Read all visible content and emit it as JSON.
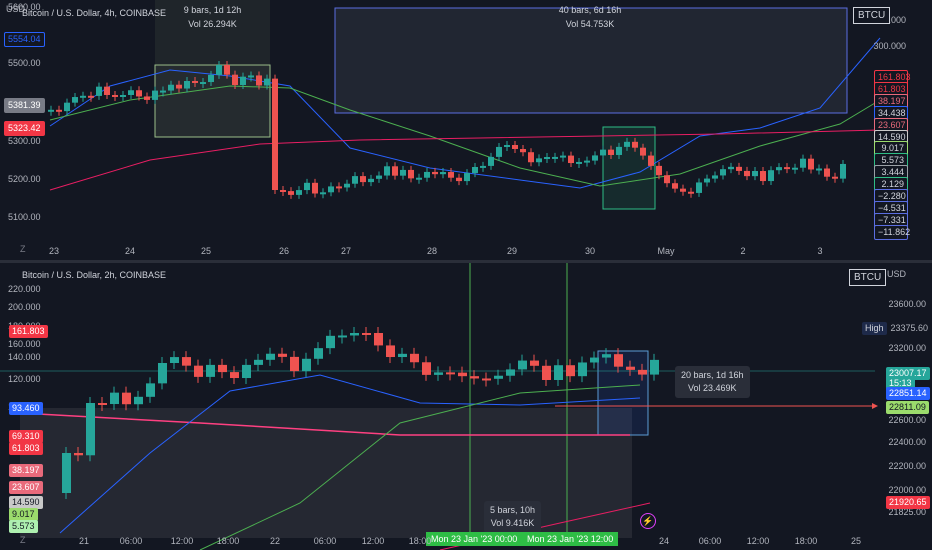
{
  "top_pane": {
    "title": "Bitcoin / U.S. Dollar, 4h, COINBASE",
    "currency": "USD",
    "symbol_button": "BTCU",
    "left_axis": [
      "5600.00",
      "5500.00",
      "5400.00",
      "5300.00",
      "5200.00",
      "5100.00"
    ],
    "left_badges": [
      {
        "text": "5554.04",
        "color": "#2962ff",
        "bg": "#131722"
      },
      {
        "text": "5381.39",
        "color": "#fff",
        "bg": "#787b86"
      },
      {
        "text": "5323.42",
        "color": "#fff",
        "bg": "#f23645"
      }
    ],
    "right_axis": [
      "400.000",
      "300.000"
    ],
    "right_badges": [
      {
        "text": "161.803",
        "bg": "#131722",
        "color": "#f23645",
        "border": "#f23645"
      },
      {
        "text": "61.803",
        "bg": "#131722",
        "color": "#f23645",
        "border": "#f23645"
      },
      {
        "text": "38.197",
        "bg": "#131722",
        "color": "#e96a7b",
        "border": "#e96a7b"
      },
      {
        "text": "34.438",
        "bg": "#131722",
        "color": "#d1d4dc",
        "border": "#2962ff"
      },
      {
        "text": "23.607",
        "bg": "#131722",
        "color": "#e96a7b",
        "border": "#e96a7b"
      },
      {
        "text": "14.590",
        "bg": "#131722",
        "color": "#d1d4dc",
        "border": "#c9c9c9"
      },
      {
        "text": "9.017",
        "bg": "#131722",
        "color": "#d1d4dc",
        "border": "#9bdb6c"
      },
      {
        "text": "5.573",
        "bg": "#131722",
        "color": "#d1d4dc",
        "border": "#2ebd85"
      },
      {
        "text": "3.444",
        "bg": "#131722",
        "color": "#d1d4dc",
        "border": "#9aa0a6"
      },
      {
        "text": "2.129",
        "bg": "#131722",
        "color": "#d1d4dc",
        "border": "#2ebd85"
      },
      {
        "text": "−2.280",
        "bg": "#131722",
        "color": "#d1d4dc",
        "border": "#5b6ee1"
      },
      {
        "text": "−4.531",
        "bg": "#131722",
        "color": "#d1d4dc",
        "border": "#5b6ee1"
      },
      {
        "text": "−7.331",
        "bg": "#131722",
        "color": "#d1d4dc",
        "border": "#5b6ee1"
      },
      {
        "text": "−11.862",
        "bg": "#131722",
        "color": "#d1d4dc",
        "border": "#5b6ee1"
      }
    ],
    "x_labels": [
      "23",
      "24",
      "25",
      "26",
      "27",
      "28",
      "29",
      "30",
      "May",
      "2",
      "3"
    ],
    "range_box_1": {
      "bars": "9 bars, 1d 12h",
      "vol": "Vol 26.294K"
    },
    "range_box_2": {
      "bars": "40 bars, 6d 16h",
      "vol": "Vol 54.753K"
    },
    "z_label": "Z"
  },
  "bottom_pane": {
    "title": "Bitcoin / U.S. Dollar, 2h, COINBASE",
    "currency": "USD",
    "symbol_button": "BTCU",
    "left_axis": [
      "220.000",
      "200.000",
      "180.000",
      "160.000",
      "140.000",
      "120.000",
      "100.000"
    ],
    "left_badges": [
      {
        "text": "161.803",
        "bg": "#f23645",
        "color": "#fff"
      },
      {
        "text": "93.460",
        "bg": "#2962ff",
        "color": "#fff"
      },
      {
        "text": "69.310",
        "bg": "#f23645",
        "color": "#fff"
      },
      {
        "text": "61.803",
        "bg": "#f23645",
        "color": "#fff"
      },
      {
        "text": "38.197",
        "bg": "#e96a7b",
        "color": "#fff"
      },
      {
        "text": "23.607",
        "bg": "#e96a7b",
        "color": "#fff"
      },
      {
        "text": "14.590",
        "bg": "#c9c9c9",
        "color": "#131722"
      },
      {
        "text": "9.017",
        "bg": "#9bdb6c",
        "color": "#131722"
      },
      {
        "text": "5.573",
        "bg": "#aef0b0",
        "color": "#131722"
      }
    ],
    "right_axis": [
      "23600.00",
      "23400.00",
      "23200.00",
      "22600.00",
      "22400.00",
      "22200.00",
      "22000.00",
      "21825.00"
    ],
    "high_label": "High",
    "high_value": "23375.60",
    "price_badges": [
      {
        "text": "23007.17",
        "bg": "#26a69a",
        "color": "#fff"
      },
      {
        "text": "15:13",
        "bg": "#26a69a",
        "color": "#fff"
      },
      {
        "text": "22851.14",
        "bg": "#2962ff",
        "color": "#fff"
      },
      {
        "text": "22811.09",
        "bg": "#9bdb6c",
        "color": "#131722"
      },
      {
        "text": "21920.65",
        "bg": "#f23645",
        "color": "#fff"
      }
    ],
    "x_labels": [
      "21",
      "06:00",
      "12:00",
      "18:00",
      "22",
      "06:00",
      "12:00",
      "18:00",
      "24",
      "06:00",
      "12:00",
      "18:00",
      "25"
    ],
    "measure_tip": {
      "bars": "20 bars, 1d 16h",
      "vol": "Vol 23.469K"
    },
    "bottom_tip": {
      "bars": "5 bars, 10h",
      "vol": "Vol 9.416K"
    },
    "time_tags": [
      "Mon 23 Jan '23   00:00",
      "Mon 23 Jan '23   12:00"
    ],
    "z_label": "Z",
    "flash_icon": "lightning-icon"
  }
}
